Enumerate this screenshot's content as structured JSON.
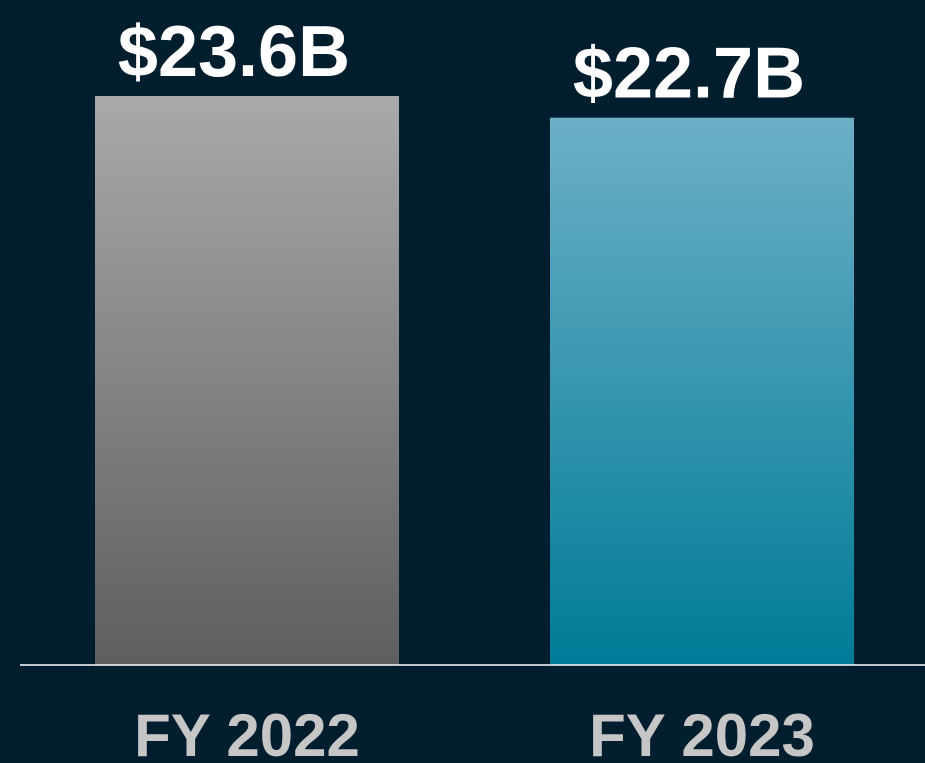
{
  "chart_data": {
    "type": "bar",
    "categories": [
      "FY 2022",
      "FY 2023"
    ],
    "values": [
      23.6,
      22.7
    ],
    "value_labels": [
      "$23.6B",
      "$22.7B"
    ],
    "colors": [
      [
        "#a9a9a9",
        "#5e5e5e"
      ],
      [
        "#6cb0c6",
        "#007b97"
      ]
    ]
  }
}
